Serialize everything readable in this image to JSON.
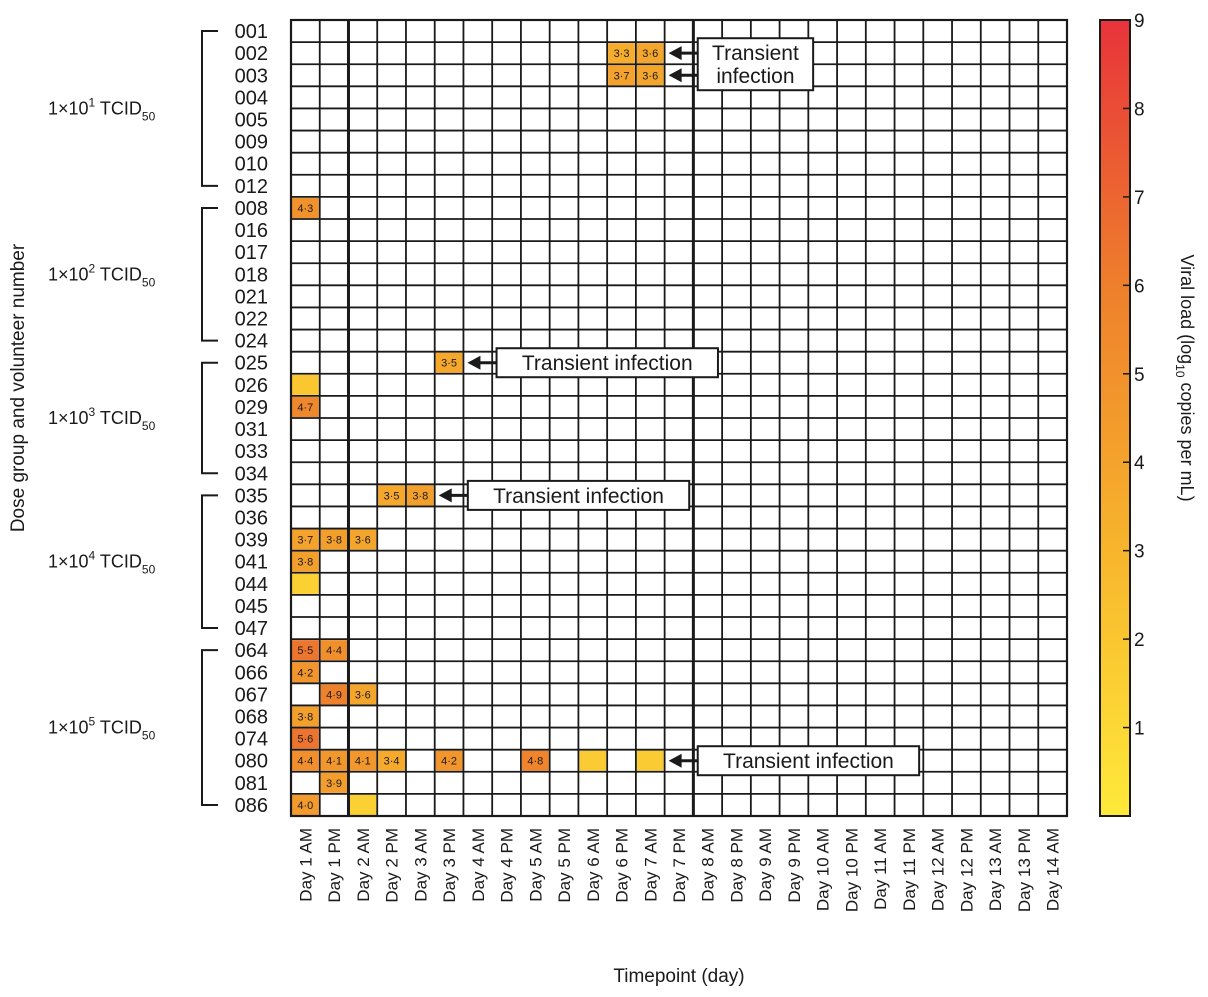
{
  "chart_data": {
    "type": "heatmap",
    "title": "",
    "xlabel": "Timepoint (day)",
    "ylabel": "Dose group and volunteer number",
    "colorbar": {
      "label": "Viral load (log",
      "label_sub": "10",
      "label_tail": " copies per mL)",
      "min": 0,
      "max": 9,
      "ticks": [
        1,
        2,
        3,
        4,
        5,
        6,
        7,
        8,
        9
      ],
      "colors": [
        "#ffe93a",
        "#f7b52c",
        "#ee7f2c",
        "#e8333a"
      ]
    },
    "x_categories": [
      "Day 1 AM",
      "Day 1 PM",
      "Day 2 AM",
      "Day 2 PM",
      "Day 3 AM",
      "Day 3 PM",
      "Day 4 AM",
      "Day 4 PM",
      "Day 5 AM",
      "Day 5 PM",
      "Day 6 AM",
      "Day 6 PM",
      "Day 7 AM",
      "Day 7 PM",
      "Day 8 AM",
      "Day 8 PM",
      "Day 9 AM",
      "Day 9 PM",
      "Day 10 AM",
      "Day 10 PM",
      "Day 11 AM",
      "Day 11 PM",
      "Day 12 AM",
      "Day 12 PM",
      "Day 13 AM",
      "Day 13 PM",
      "Day 14 AM"
    ],
    "y_categories": [
      "001",
      "002",
      "003",
      "004",
      "005",
      "009",
      "010",
      "012",
      "008",
      "016",
      "017",
      "018",
      "021",
      "022",
      "024",
      "025",
      "026",
      "029",
      "031",
      "033",
      "034",
      "035",
      "036",
      "039",
      "041",
      "044",
      "045",
      "047",
      "064",
      "066",
      "067",
      "068",
      "074",
      "080",
      "081",
      "086"
    ],
    "groups": [
      {
        "label": "1×10",
        "sup": "1",
        "tail": " TCID",
        "sub": "50",
        "first": 0,
        "last": 7
      },
      {
        "label": "1×10",
        "sup": "2",
        "tail": " TCID",
        "sub": "50",
        "first": 8,
        "last": 14
      },
      {
        "label": "1×10",
        "sup": "3",
        "tail": " TCID",
        "sub": "50",
        "first": 15,
        "last": 20
      },
      {
        "label": "1×10",
        "sup": "4",
        "tail": " TCID",
        "sub": "50",
        "first": 21,
        "last": 27
      },
      {
        "label": "1×10",
        "sup": "5",
        "tail": " TCID",
        "sub": "50",
        "first": 28,
        "last": 35
      }
    ],
    "cells": [
      {
        "row": 1,
        "col": 11,
        "value": 3.3,
        "label": "3·3"
      },
      {
        "row": 1,
        "col": 12,
        "value": 3.6,
        "label": "3·6"
      },
      {
        "row": 2,
        "col": 11,
        "value": 3.7,
        "label": "3·7"
      },
      {
        "row": 2,
        "col": 12,
        "value": 3.6,
        "label": "3·6"
      },
      {
        "row": 8,
        "col": 0,
        "value": 4.3,
        "label": "4·3"
      },
      {
        "row": 15,
        "col": 5,
        "value": 3.5,
        "label": "3·5"
      },
      {
        "row": 16,
        "col": 0,
        "value": 2.0,
        "label": ""
      },
      {
        "row": 17,
        "col": 0,
        "value": 4.7,
        "label": "4·7"
      },
      {
        "row": 21,
        "col": 3,
        "value": 3.5,
        "label": "3·5"
      },
      {
        "row": 21,
        "col": 4,
        "value": 3.8,
        "label": "3·8"
      },
      {
        "row": 23,
        "col": 0,
        "value": 3.7,
        "label": "3·7"
      },
      {
        "row": 23,
        "col": 1,
        "value": 3.8,
        "label": "3·8"
      },
      {
        "row": 23,
        "col": 2,
        "value": 3.6,
        "label": "3·6"
      },
      {
        "row": 24,
        "col": 0,
        "value": 3.8,
        "label": "3·8"
      },
      {
        "row": 25,
        "col": 0,
        "value": 1.5,
        "label": ""
      },
      {
        "row": 28,
        "col": 0,
        "value": 5.5,
        "label": "5·5"
      },
      {
        "row": 28,
        "col": 1,
        "value": 4.4,
        "label": "4·4"
      },
      {
        "row": 29,
        "col": 0,
        "value": 4.2,
        "label": "4·2"
      },
      {
        "row": 30,
        "col": 1,
        "value": 4.9,
        "label": "4·9"
      },
      {
        "row": 30,
        "col": 2,
        "value": 3.6,
        "label": "3·6"
      },
      {
        "row": 31,
        "col": 0,
        "value": 3.8,
        "label": "3·8"
      },
      {
        "row": 32,
        "col": 0,
        "value": 5.6,
        "label": "5·6"
      },
      {
        "row": 33,
        "col": 0,
        "value": 4.4,
        "label": "4·4"
      },
      {
        "row": 33,
        "col": 1,
        "value": 4.1,
        "label": "4·1"
      },
      {
        "row": 33,
        "col": 2,
        "value": 4.1,
        "label": "4·1"
      },
      {
        "row": 33,
        "col": 3,
        "value": 3.4,
        "label": "3·4"
      },
      {
        "row": 33,
        "col": 5,
        "value": 4.2,
        "label": "4·2"
      },
      {
        "row": 33,
        "col": 8,
        "value": 4.8,
        "label": "4·8"
      },
      {
        "row": 33,
        "col": 10,
        "value": 1.8,
        "label": ""
      },
      {
        "row": 33,
        "col": 12,
        "value": 1.8,
        "label": ""
      },
      {
        "row": 34,
        "col": 1,
        "value": 3.9,
        "label": "3·9"
      },
      {
        "row": 35,
        "col": 2,
        "value": 1.5,
        "label": ""
      },
      {
        "row": 35,
        "col": 0,
        "value": 4.0,
        "label": "4·0"
      }
    ],
    "annotations": [
      {
        "lines": [
          "Transient",
          "infection"
        ],
        "row": 1.5,
        "arrow_rows": [
          1,
          2
        ],
        "arrow_col": 13,
        "box_col": 14.5
      },
      {
        "lines": [
          "Transient infection"
        ],
        "row": 15,
        "arrow_rows": [
          15
        ],
        "arrow_col": 6,
        "box_col": 7.5
      },
      {
        "lines": [
          "Transient infection"
        ],
        "row": 21,
        "arrow_rows": [
          21
        ],
        "arrow_col": 5,
        "box_col": 6.5
      },
      {
        "lines": [
          "Transient infection"
        ],
        "row": 33,
        "arrow_rows": [
          33
        ],
        "arrow_col": 13,
        "box_col": 14.5
      }
    ],
    "thick_vertical_after_cols": [
      1,
      13
    ],
    "legend": "colorbar-right",
    "grid": true
  }
}
